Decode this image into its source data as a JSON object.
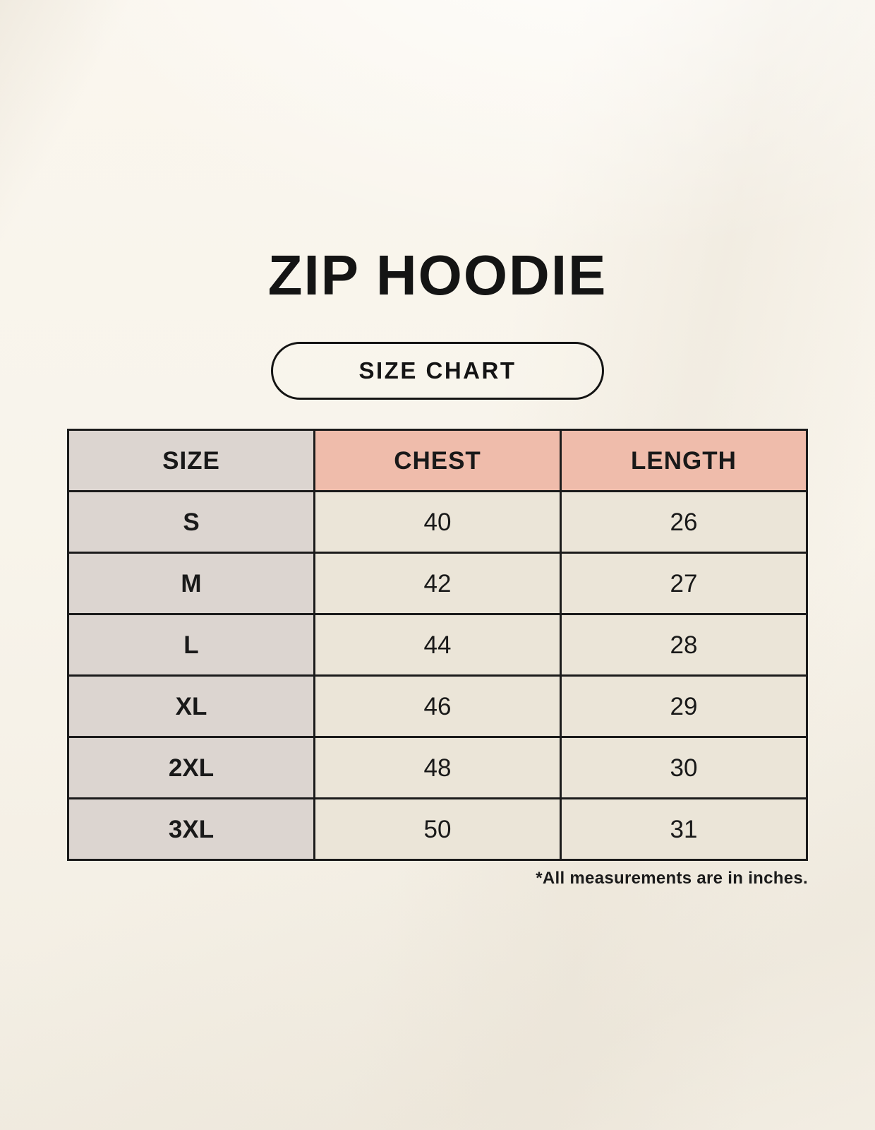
{
  "page": {
    "title": "ZIP HOODIE",
    "badge_label": "SIZE CHART",
    "footnote": "*All measurements are in inches."
  },
  "chart_data": {
    "type": "table",
    "title": "ZIP HOODIE",
    "subtitle": "SIZE CHART",
    "columns": [
      "SIZE",
      "CHEST",
      "LENGTH"
    ],
    "rows": [
      [
        "S",
        40,
        26
      ],
      [
        "M",
        42,
        27
      ],
      [
        "L",
        44,
        28
      ],
      [
        "XL",
        46,
        29
      ],
      [
        "2XL",
        48,
        30
      ],
      [
        "3XL",
        50,
        31
      ]
    ],
    "units": "inches",
    "note": "*All measurements are in inches.",
    "layout": {
      "grid": "full-borders",
      "size_column_background": "#dcd5d0",
      "measure_header_background": "#efbcab",
      "value_cell_background": "#ebe5d8"
    }
  },
  "colors": {
    "background": "#f8f4eb",
    "accent_pink": "#efbcab",
    "accent_gray": "#dcd5d0",
    "cell_cream": "#ebe5d8",
    "border": "#1b1b1b",
    "text": "#191919"
  }
}
